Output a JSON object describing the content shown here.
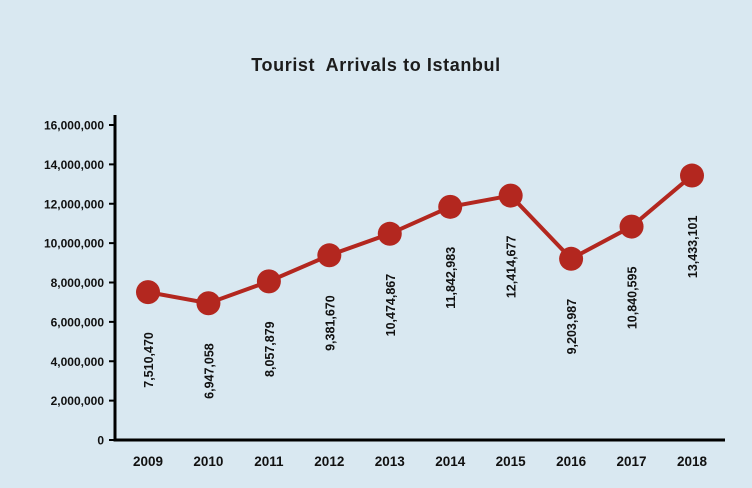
{
  "page": {
    "background_color": "#d9e8f1"
  },
  "chart_data": {
    "type": "line",
    "title": "Tourist  Arrivals to Istanbul",
    "categories": [
      "2009",
      "2010",
      "2011",
      "2012",
      "2013",
      "2014",
      "2015",
      "2016",
      "2017",
      "2018"
    ],
    "values": [
      7510470,
      6947058,
      8057879,
      9381670,
      10474867,
      11842983,
      12414677,
      9203987,
      10840595,
      13433101
    ],
    "value_labels": [
      "7,510,470",
      "6,947,058",
      "8,057,879",
      "9,381,670",
      "10,474,867",
      "11,842,983",
      "12,414,677",
      "9,203,987",
      "10,840,595",
      "13,433,101"
    ],
    "xlabel": "",
    "ylabel": "",
    "ylim": [
      0,
      16000000
    ],
    "ytick_step": 2000000,
    "ytick_labels": [
      "0",
      "2,000,000",
      "4,000,000",
      "6,000,000",
      "8,000,000",
      "10,000,000",
      "12,000,000",
      "14,000,000",
      "16,000,000"
    ],
    "grid": false,
    "legend": "none",
    "series_color": "#b3271f",
    "axis_color": "#000000",
    "label_color": "#111111",
    "marker_radius": 12
  }
}
